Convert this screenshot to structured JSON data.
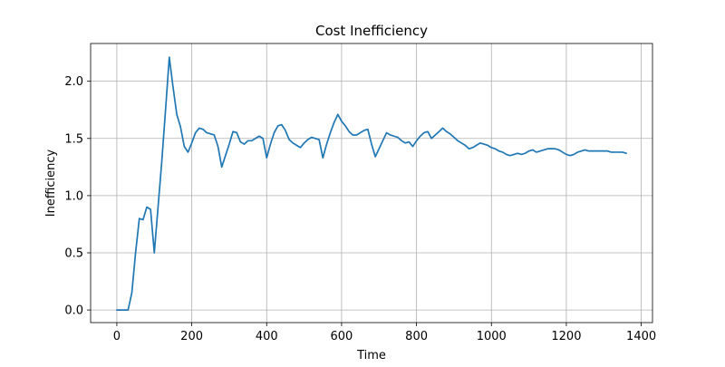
{
  "chart_data": {
    "type": "line",
    "title": "Cost Inefficiency",
    "xlabel": "Time",
    "ylabel": "Inefficiency",
    "xlim": [
      -70,
      1430
    ],
    "ylim": [
      -0.11,
      2.33
    ],
    "xticks": [
      0,
      200,
      400,
      600,
      800,
      1000,
      1200,
      1400
    ],
    "yticks": [
      0.0,
      0.5,
      1.0,
      1.5,
      2.0
    ],
    "xtick_labels": [
      "0",
      "200",
      "400",
      "600",
      "800",
      "1000",
      "1200",
      "1400"
    ],
    "ytick_labels": [
      "0.0",
      "0.5",
      "1.0",
      "1.5",
      "2.0"
    ],
    "grid": true,
    "series": [
      {
        "color": "#1f77b4",
        "x": [
          0,
          15,
          30,
          40,
          50,
          60,
          70,
          80,
          90,
          100,
          110,
          120,
          130,
          140,
          150,
          160,
          170,
          180,
          190,
          200,
          210,
          220,
          230,
          240,
          250,
          260,
          270,
          280,
          290,
          300,
          310,
          320,
          330,
          340,
          350,
          360,
          370,
          380,
          390,
          400,
          410,
          420,
          430,
          440,
          450,
          460,
          470,
          480,
          490,
          500,
          510,
          520,
          530,
          540,
          550,
          560,
          570,
          580,
          590,
          600,
          610,
          620,
          630,
          640,
          650,
          660,
          670,
          680,
          690,
          700,
          710,
          720,
          730,
          740,
          750,
          760,
          770,
          780,
          790,
          800,
          810,
          820,
          830,
          840,
          850,
          860,
          870,
          880,
          890,
          900,
          910,
          920,
          930,
          940,
          950,
          960,
          970,
          980,
          990,
          1000,
          1010,
          1020,
          1030,
          1040,
          1050,
          1060,
          1070,
          1080,
          1090,
          1100,
          1110,
          1120,
          1130,
          1140,
          1150,
          1160,
          1170,
          1180,
          1190,
          1200,
          1210,
          1220,
          1230,
          1240,
          1250,
          1260,
          1270,
          1280,
          1290,
          1300,
          1310,
          1320,
          1330,
          1340,
          1350,
          1360
        ],
        "y": [
          0.0,
          0.0,
          0.0,
          0.15,
          0.5,
          0.8,
          0.79,
          0.9,
          0.88,
          0.5,
          0.9,
          1.3,
          1.75,
          2.21,
          1.95,
          1.71,
          1.6,
          1.43,
          1.38,
          1.46,
          1.55,
          1.59,
          1.58,
          1.55,
          1.54,
          1.53,
          1.43,
          1.25,
          1.35,
          1.45,
          1.56,
          1.55,
          1.47,
          1.45,
          1.48,
          1.48,
          1.5,
          1.52,
          1.5,
          1.33,
          1.45,
          1.55,
          1.61,
          1.62,
          1.57,
          1.49,
          1.46,
          1.44,
          1.42,
          1.46,
          1.49,
          1.51,
          1.5,
          1.49,
          1.33,
          1.45,
          1.55,
          1.64,
          1.71,
          1.65,
          1.61,
          1.56,
          1.53,
          1.53,
          1.55,
          1.57,
          1.58,
          1.45,
          1.34,
          1.41,
          1.48,
          1.55,
          1.53,
          1.52,
          1.51,
          1.48,
          1.46,
          1.47,
          1.43,
          1.48,
          1.52,
          1.55,
          1.56,
          1.5,
          1.53,
          1.56,
          1.59,
          1.56,
          1.54,
          1.51,
          1.48,
          1.46,
          1.44,
          1.41,
          1.42,
          1.44,
          1.46,
          1.45,
          1.44,
          1.42,
          1.41,
          1.39,
          1.38,
          1.36,
          1.35,
          1.36,
          1.37,
          1.36,
          1.37,
          1.39,
          1.4,
          1.38,
          1.39,
          1.4,
          1.41,
          1.41,
          1.41,
          1.4,
          1.38,
          1.36,
          1.35,
          1.36,
          1.38,
          1.39,
          1.4,
          1.39,
          1.39,
          1.39,
          1.39,
          1.39,
          1.39,
          1.38,
          1.38,
          1.38,
          1.38,
          1.37
        ]
      }
    ]
  }
}
